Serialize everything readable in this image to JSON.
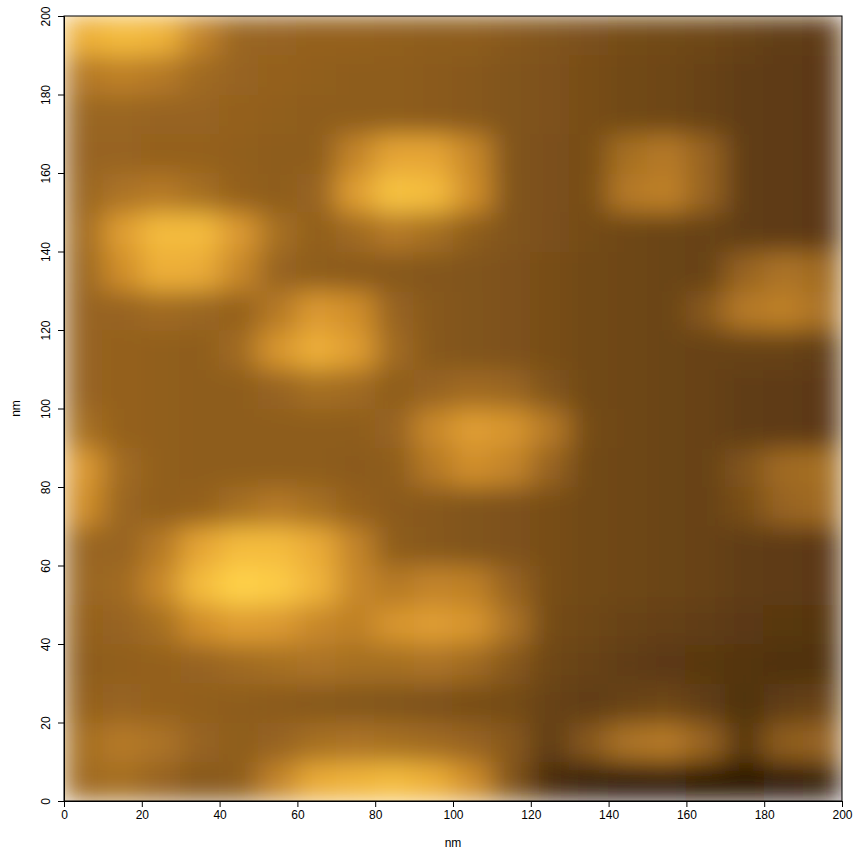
{
  "chart_data": {
    "type": "heatmap",
    "x_label": "nm",
    "y_label": "nm",
    "xlim": [
      0,
      200
    ],
    "ylim": [
      0,
      200
    ],
    "xticks": [
      0,
      20,
      40,
      60,
      80,
      100,
      120,
      140,
      160,
      180,
      200
    ],
    "yticks": [
      0,
      20,
      40,
      60,
      80,
      100,
      120,
      140,
      160,
      180,
      200
    ],
    "grid": false,
    "x_bins": [
      0,
      10,
      20,
      30,
      40,
      50,
      60,
      70,
      80,
      90,
      100,
      110,
      120,
      130,
      140,
      150,
      160,
      170,
      180,
      190,
      200
    ],
    "y_bins": [
      0,
      10,
      20,
      30,
      40,
      50,
      60,
      70,
      80,
      90,
      100,
      110,
      120,
      130,
      140,
      150,
      160,
      170,
      180,
      190,
      200
    ],
    "z": [
      [
        48,
        50,
        45,
        40,
        42,
        60,
        78,
        82,
        85,
        80,
        65,
        38,
        20,
        15,
        12,
        12,
        10,
        10,
        12,
        15
      ],
      [
        50,
        55,
        52,
        45,
        42,
        45,
        50,
        52,
        50,
        48,
        45,
        40,
        28,
        40,
        52,
        55,
        45,
        25,
        42,
        45
      ],
      [
        44,
        45,
        44,
        43,
        42,
        41,
        40,
        39,
        38,
        37,
        35,
        34,
        30,
        28,
        30,
        32,
        28,
        22,
        28,
        30
      ],
      [
        42,
        43,
        44,
        45,
        48,
        50,
        52,
        50,
        50,
        52,
        48,
        40,
        32,
        30,
        28,
        26,
        25,
        24,
        22,
        22
      ],
      [
        44,
        45,
        50,
        65,
        72,
        70,
        62,
        58,
        68,
        72,
        68,
        52,
        34,
        32,
        30,
        29,
        28,
        26,
        25,
        24
      ],
      [
        46,
        48,
        62,
        85,
        95,
        92,
        82,
        62,
        55,
        60,
        58,
        45,
        35,
        33,
        32,
        31,
        30,
        28,
        27,
        26
      ],
      [
        46,
        45,
        55,
        75,
        85,
        85,
        78,
        60,
        42,
        40,
        38,
        37,
        35,
        33,
        32,
        31,
        30,
        28,
        27,
        26
      ],
      [
        65,
        46,
        43,
        44,
        50,
        55,
        50,
        44,
        41,
        40,
        38,
        37,
        35,
        33,
        32,
        31,
        30,
        35,
        45,
        48
      ],
      [
        70,
        48,
        43,
        42,
        42,
        42,
        42,
        41,
        42,
        55,
        65,
        60,
        45,
        33,
        32,
        31,
        30,
        38,
        48,
        50
      ],
      [
        50,
        44,
        43,
        42,
        42,
        42,
        42,
        42,
        45,
        62,
        72,
        68,
        55,
        34,
        32,
        31,
        30,
        28,
        27,
        26
      ],
      [
        45,
        44,
        43,
        42,
        42,
        45,
        50,
        48,
        42,
        45,
        48,
        46,
        38,
        33,
        32,
        31,
        30,
        28,
        27,
        26
      ],
      [
        45,
        44,
        43,
        42,
        48,
        68,
        80,
        72,
        48,
        40,
        38,
        37,
        35,
        33,
        32,
        31,
        30,
        30,
        30,
        28
      ],
      [
        45,
        45,
        48,
        46,
        44,
        55,
        70,
        65,
        45,
        40,
        38,
        37,
        35,
        33,
        32,
        31,
        40,
        55,
        58,
        52
      ],
      [
        46,
        65,
        80,
        78,
        62,
        45,
        42,
        41,
        40,
        39,
        38,
        37,
        35,
        33,
        32,
        31,
        30,
        45,
        52,
        48
      ],
      [
        48,
        72,
        85,
        85,
        70,
        50,
        43,
        48,
        55,
        50,
        42,
        38,
        36,
        34,
        32,
        31,
        30,
        28,
        27,
        26
      ],
      [
        46,
        52,
        55,
        50,
        44,
        42,
        45,
        72,
        88,
        85,
        65,
        38,
        36,
        35,
        55,
        58,
        45,
        28,
        27,
        26
      ],
      [
        45,
        45,
        44,
        44,
        43,
        42,
        42,
        60,
        75,
        75,
        62,
        38,
        36,
        35,
        50,
        55,
        45,
        28,
        27,
        26
      ],
      [
        46,
        46,
        45,
        45,
        44,
        43,
        42,
        42,
        42,
        41,
        40,
        38,
        37,
        35,
        33,
        32,
        30,
        28,
        27,
        26
      ],
      [
        55,
        58,
        55,
        48,
        45,
        44,
        43,
        42,
        42,
        41,
        40,
        38,
        37,
        35,
        33,
        32,
        30,
        28,
        27,
        26
      ],
      [
        80,
        85,
        82,
        60,
        46,
        45,
        44,
        44,
        43,
        42,
        42,
        40,
        38,
        36,
        34,
        33,
        32,
        30,
        28,
        27
      ]
    ]
  }
}
